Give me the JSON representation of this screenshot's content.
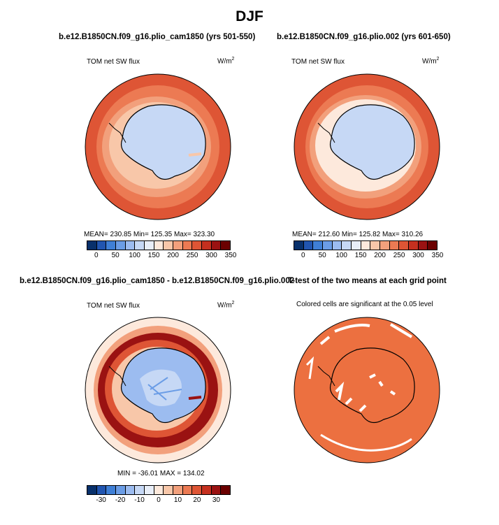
{
  "title": "DJF",
  "panels": {
    "top_left": {
      "header": "b.e12.B1850CN.f09_g16.plio_cam1850 (yrs 501-550)",
      "variable": "TOM net SW flux",
      "units": "W/m",
      "units_exp": "2",
      "stats": "MEAN= 230.85   Min= 125.35   Max= 323.30",
      "colorbar_ticks": [
        "0",
        "50",
        "100",
        "150",
        "200",
        "250",
        "300",
        "350"
      ]
    },
    "top_right": {
      "header": "b.e12.B1850CN.f09_g16.plio.002 (yrs 601-650)",
      "variable": "TOM net SW flux",
      "units": "W/m",
      "units_exp": "2",
      "stats": "MEAN= 212.60   Min= 125.82   Max= 310.26",
      "colorbar_ticks": [
        "0",
        "50",
        "100",
        "150",
        "200",
        "250",
        "300",
        "350"
      ]
    },
    "bottom_left": {
      "header": "b.e12.B1850CN.f09_g16.plio_cam1850 - b.e12.B1850CN.f09_g16.plio.002",
      "variable": "TOM net SW flux",
      "units": "W/m",
      "units_exp": "2",
      "stats": "MIN = -36.01  MAX = 134.02",
      "colorbar_ticks": [
        "-30",
        "-20",
        "-10",
        "0",
        "10",
        "20",
        "30"
      ]
    },
    "bottom_right": {
      "header": "T-test of the two means at each grid point",
      "note": "Colored cells are significant at the 0.05 level"
    }
  },
  "colors": {
    "abs_scale": [
      "#08306b",
      "#2155b0",
      "#3f7fd6",
      "#6b9de6",
      "#9cbcf0",
      "#c6d8f5",
      "#e8eef8",
      "#fde9dc",
      "#f8c7a9",
      "#f2a07c",
      "#ec7a53",
      "#de5535",
      "#c5301f",
      "#9a1212",
      "#6b0000"
    ],
    "diff_scale": [
      "#08306b",
      "#2155b0",
      "#3f7fd6",
      "#6b9de6",
      "#9cbcf0",
      "#c6d8f5",
      "#e8eef8",
      "#fde9dc",
      "#f8c7a9",
      "#f2a07c",
      "#ec7a53",
      "#de5535",
      "#c5301f",
      "#9a1212",
      "#6b0000"
    ],
    "significance": "#ec7040"
  }
}
